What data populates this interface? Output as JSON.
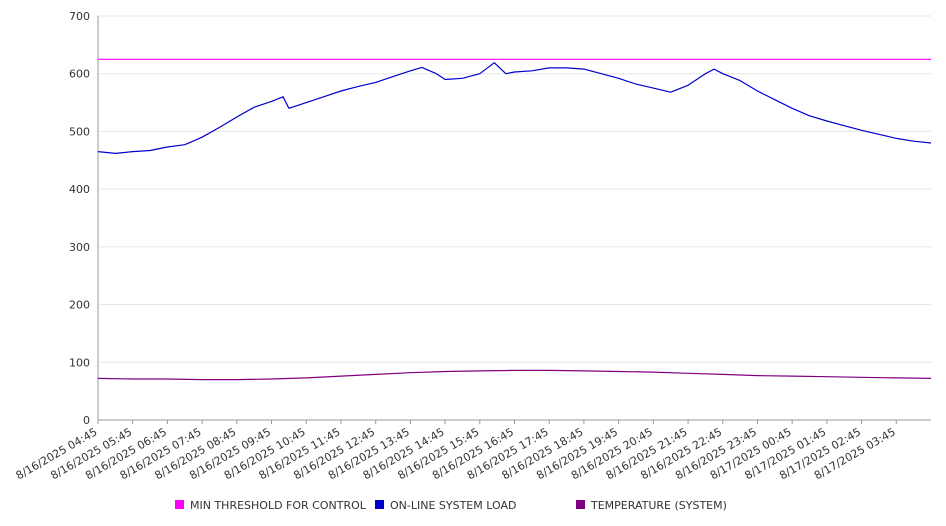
{
  "chart_data": {
    "type": "line",
    "title": "",
    "xlabel": "",
    "ylabel": "",
    "ylim": [
      0,
      700
    ],
    "yticks": [
      0,
      100,
      200,
      300,
      400,
      500,
      600,
      700
    ],
    "grid": "horizontal",
    "legend_position": "bottom",
    "x": [
      "8/16/2025 04:45",
      "8/16/2025 05:45",
      "8/16/2025 06:45",
      "8/16/2025 07:45",
      "8/16/2025 08:45",
      "8/16/2025 09:45",
      "8/16/2025 10:45",
      "8/16/2025 11:45",
      "8/16/2025 12:45",
      "8/16/2025 13:45",
      "8/16/2025 14:45",
      "8/16/2025 15:45",
      "8/16/2025 16:45",
      "8/16/2025 17:45",
      "8/16/2025 18:45",
      "8/16/2025 19:45",
      "8/16/2025 20:45",
      "8/16/2025 21:45",
      "8/16/2025 22:45",
      "8/16/2025 23:45",
      "8/17/2025 00:45",
      "8/17/2025 01:45",
      "8/17/2025 02:45",
      "8/17/2025 03:45"
    ],
    "series": [
      {
        "name": "MIN THRESHOLD FOR CONTROL",
        "color": "#ff00ff",
        "points": [
          [
            "8/16/2025 04:45",
            625
          ],
          [
            "8/17/2025 04:45",
            625
          ]
        ]
      },
      {
        "name": "ON-LINE SYSTEM LOAD",
        "color": "#0000cc",
        "points": [
          [
            "8/16/2025 04:45",
            465
          ],
          [
            "8/16/2025 05:15",
            462
          ],
          [
            "8/16/2025 05:45",
            465
          ],
          [
            "8/16/2025 06:15",
            467
          ],
          [
            "8/16/2025 06:45",
            473
          ],
          [
            "8/16/2025 07:15",
            477
          ],
          [
            "8/16/2025 07:45",
            490
          ],
          [
            "8/16/2025 08:15",
            507
          ],
          [
            "8/16/2025 08:45",
            525
          ],
          [
            "8/16/2025 09:15",
            542
          ],
          [
            "8/16/2025 09:45",
            552
          ],
          [
            "8/16/2025 10:05",
            560
          ],
          [
            "8/16/2025 10:15",
            540
          ],
          [
            "8/16/2025 10:45",
            550
          ],
          [
            "8/16/2025 11:15",
            560
          ],
          [
            "8/16/2025 11:45",
            570
          ],
          [
            "8/16/2025 12:15",
            578
          ],
          [
            "8/16/2025 12:45",
            585
          ],
          [
            "8/16/2025 13:15",
            595
          ],
          [
            "8/16/2025 13:45",
            605
          ],
          [
            "8/16/2025 14:05",
            611
          ],
          [
            "8/16/2025 14:30",
            600
          ],
          [
            "8/16/2025 14:45",
            590
          ],
          [
            "8/16/2025 15:15",
            592
          ],
          [
            "8/16/2025 15:45",
            600
          ],
          [
            "8/16/2025 16:10",
            619
          ],
          [
            "8/16/2025 16:30",
            600
          ],
          [
            "8/16/2025 16:45",
            603
          ],
          [
            "8/16/2025 17:15",
            605
          ],
          [
            "8/16/2025 17:45",
            610
          ],
          [
            "8/16/2025 18:15",
            610
          ],
          [
            "8/16/2025 18:45",
            608
          ],
          [
            "8/16/2025 19:15",
            600
          ],
          [
            "8/16/2025 19:45",
            592
          ],
          [
            "8/16/2025 20:15",
            582
          ],
          [
            "8/16/2025 20:45",
            575
          ],
          [
            "8/16/2025 21:15",
            568
          ],
          [
            "8/16/2025 21:45",
            580
          ],
          [
            "8/16/2025 22:15",
            600
          ],
          [
            "8/16/2025 22:30",
            608
          ],
          [
            "8/16/2025 22:45",
            600
          ],
          [
            "8/16/2025 23:15",
            588
          ],
          [
            "8/16/2025 23:45",
            570
          ],
          [
            "8/17/2025 00:15",
            555
          ],
          [
            "8/17/2025 00:45",
            540
          ],
          [
            "8/17/2025 01:15",
            527
          ],
          [
            "8/17/2025 01:45",
            518
          ],
          [
            "8/17/2025 02:15",
            510
          ],
          [
            "8/17/2025 02:45",
            502
          ],
          [
            "8/17/2025 03:15",
            495
          ],
          [
            "8/17/2025 03:45",
            488
          ],
          [
            "8/17/2025 04:15",
            483
          ],
          [
            "8/17/2025 04:45",
            480
          ]
        ]
      },
      {
        "name": "TEMPERATURE (SYSTEM)",
        "color": "#800080",
        "points": [
          [
            "8/16/2025 04:45",
            72
          ],
          [
            "8/16/2025 05:45",
            71
          ],
          [
            "8/16/2025 06:45",
            71
          ],
          [
            "8/16/2025 07:45",
            70
          ],
          [
            "8/16/2025 08:45",
            70
          ],
          [
            "8/16/2025 09:45",
            71
          ],
          [
            "8/16/2025 10:45",
            73
          ],
          [
            "8/16/2025 11:45",
            76
          ],
          [
            "8/16/2025 12:45",
            79
          ],
          [
            "8/16/2025 13:45",
            82
          ],
          [
            "8/16/2025 14:45",
            84
          ],
          [
            "8/16/2025 15:45",
            85
          ],
          [
            "8/16/2025 16:45",
            86
          ],
          [
            "8/16/2025 17:45",
            86
          ],
          [
            "8/16/2025 18:45",
            85
          ],
          [
            "8/16/2025 19:45",
            84
          ],
          [
            "8/16/2025 20:45",
            83
          ],
          [
            "8/16/2025 21:45",
            81
          ],
          [
            "8/16/2025 22:45",
            79
          ],
          [
            "8/16/2025 23:45",
            77
          ],
          [
            "8/17/2025 00:45",
            76
          ],
          [
            "8/17/2025 01:45",
            75
          ],
          [
            "8/17/2025 02:45",
            74
          ],
          [
            "8/17/2025 03:45",
            73
          ],
          [
            "8/17/2025 04:45",
            72
          ]
        ]
      }
    ]
  }
}
